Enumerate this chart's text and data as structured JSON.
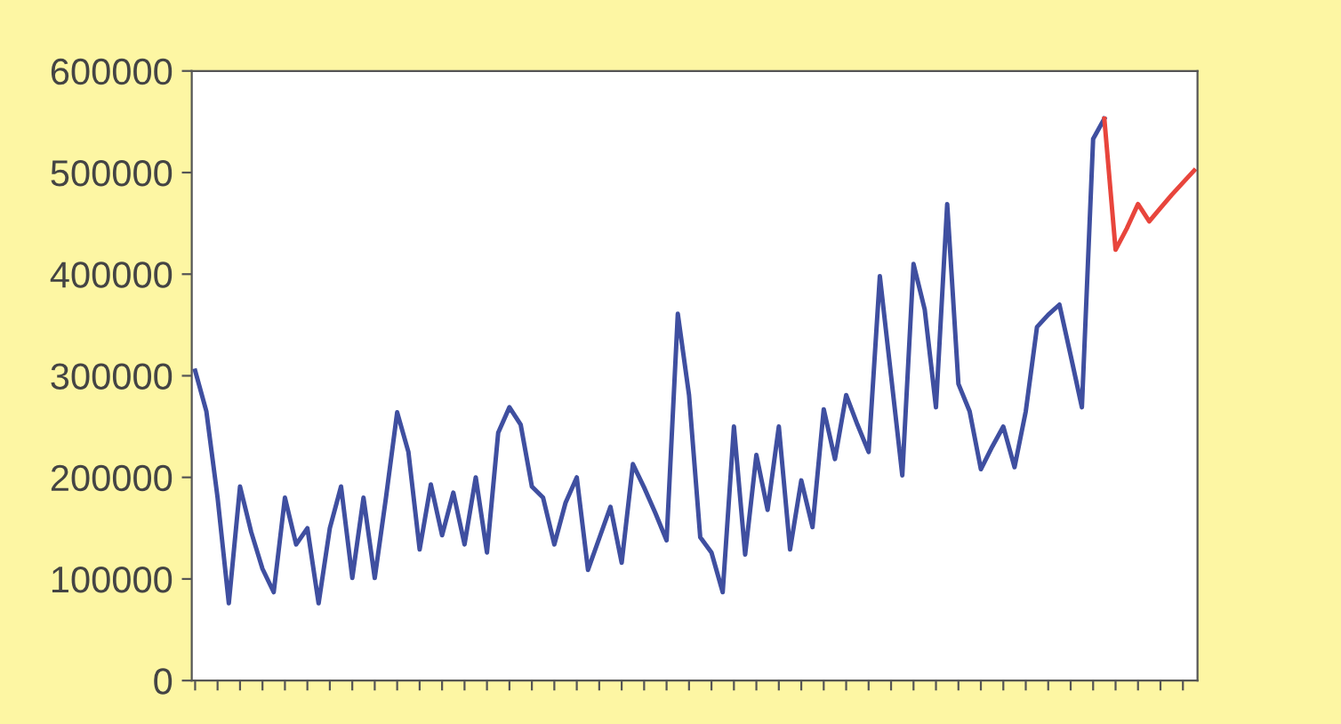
{
  "chart_data": {
    "type": "line",
    "categories": [
      null,
      null,
      null,
      null,
      null,
      null,
      null,
      null,
      null,
      null,
      null,
      null,
      null,
      null,
      null,
      null,
      null,
      null,
      null,
      null,
      null,
      null,
      null,
      null,
      null,
      null,
      null,
      null,
      null,
      null,
      null,
      null,
      null,
      null,
      null,
      null,
      null,
      null,
      null,
      null,
      null,
      null,
      null,
      null,
      null,
      null,
      null,
      null,
      null,
      null,
      null,
      null,
      null,
      null,
      null,
      null,
      null,
      null,
      null,
      null,
      null,
      null,
      null,
      null,
      null,
      null,
      null,
      null,
      null,
      null,
      null,
      null,
      null,
      null,
      null,
      null,
      null,
      null,
      null,
      null,
      null,
      null,
      null,
      null,
      null,
      null,
      null,
      null,
      null,
      null
    ],
    "ylim": [
      0,
      600000
    ],
    "yticks": [
      0,
      100000,
      200000,
      300000,
      400000,
      500000,
      600000
    ],
    "grid": false,
    "series": [
      {
        "color": "#3f4fa0",
        "values": [
          305000,
          265000,
          180000,
          76000,
          191000,
          146000,
          110000,
          87000,
          180000,
          134000,
          150000,
          76000,
          150000,
          191000,
          101000,
          180000,
          101000,
          180000,
          264000,
          225000,
          129000,
          193000,
          143000,
          185000,
          134000,
          200000,
          126000,
          244000,
          269000,
          252000,
          191000,
          180000,
          134000,
          175000,
          200000,
          109000,
          140000,
          171000,
          116000,
          213000,
          190000,
          165000,
          138000,
          361000,
          281000,
          141000,
          126000,
          87000,
          250000,
          124000,
          222000,
          168000,
          250000,
          129000,
          197000,
          151000,
          267000,
          218000,
          281000,
          252000,
          225000,
          398000,
          300000,
          202000,
          410000,
          365000,
          269000,
          469000,
          292000,
          265000,
          208000,
          230000,
          250000,
          210000,
          265000,
          348000,
          360000,
          370000,
          320000,
          269000,
          533000,
          553000,
          null,
          null,
          null,
          null,
          null,
          null,
          null,
          null
        ]
      },
      {
        "color": "#e8453c",
        "values": [
          null,
          null,
          null,
          null,
          null,
          null,
          null,
          null,
          null,
          null,
          null,
          null,
          null,
          null,
          null,
          null,
          null,
          null,
          null,
          null,
          null,
          null,
          null,
          null,
          null,
          null,
          null,
          null,
          null,
          null,
          null,
          null,
          null,
          null,
          null,
          null,
          null,
          null,
          null,
          null,
          null,
          null,
          null,
          null,
          null,
          null,
          null,
          null,
          null,
          null,
          null,
          null,
          null,
          null,
          null,
          null,
          null,
          null,
          null,
          null,
          null,
          null,
          null,
          null,
          null,
          null,
          null,
          null,
          null,
          null,
          null,
          null,
          null,
          null,
          null,
          null,
          null,
          null,
          null,
          null,
          null,
          553000,
          424000,
          445000,
          469000,
          452000,
          465000,
          478000,
          490000,
          502000
        ]
      }
    ]
  }
}
